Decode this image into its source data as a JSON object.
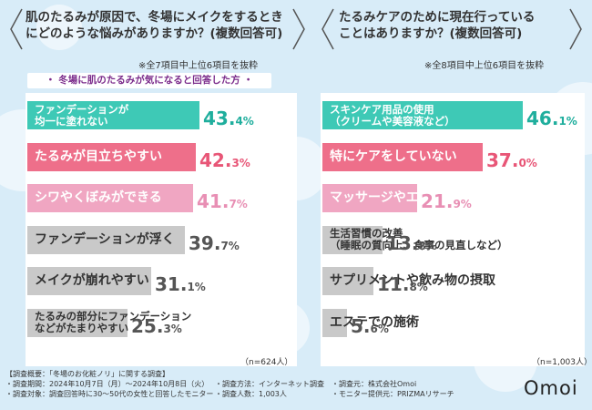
{
  "left": {
    "question": "肌のたるみが原因で、冬場にメイクをするとき\nにどのような悩みがありますか？(複数回答可)",
    "note": "※全7項目中上位6項目を抜粋",
    "subtitle": "・ 冬場に肌のたるみが気になると回答した方 ・",
    "n": "（n=624人）"
  },
  "right": {
    "question": "たるみケアのために現在行っている\nことはありますか？(複数回答可)",
    "note": "※全8項目中上位6項目を抜粋",
    "n": "（n=1,003人）"
  },
  "colors": {
    "teal": "#3ec9b6",
    "pink": "#ee6f8a",
    "lightpink": "#f0a6c2",
    "gray": "#c9c9c9",
    "teal_text": "#1fae9d",
    "pink_text": "#e85677",
    "lightpink_text": "#e88fb4",
    "gray_text": "#555555"
  },
  "chart_data": [
    {
      "type": "bar",
      "title": "肌のたるみが原因で、冬場にメイクをするときにどのような悩みがありますか？(複数回答可)",
      "subtitle": "冬場に肌のたるみが気になると回答した方",
      "categories": [
        "ファンデーションが\n均一に塗れない",
        "たるみが目立ちやすい",
        "シワやくぼみができる",
        "ファンデーションが浮く",
        "メイクが崩れやすい",
        "たるみの部分にファンデーション\nなどがたまりやすい"
      ],
      "values": [
        43.4,
        42.3,
        41.7,
        39.7,
        31.1,
        25.3
      ],
      "value_labels": [
        [
          "43.",
          "4",
          "%"
        ],
        [
          "42.",
          "3",
          "%"
        ],
        [
          "41.",
          "7",
          "%"
        ],
        [
          "39.",
          "7",
          "%"
        ],
        [
          "31.",
          "1",
          "%"
        ],
        [
          "25.",
          "3",
          "%"
        ]
      ],
      "bar_colors": [
        "teal",
        "pink",
        "lightpink",
        "gray",
        "gray",
        "gray"
      ],
      "xlim": [
        0,
        55
      ]
    },
    {
      "type": "bar",
      "title": "たるみケアのために現在行っていることはありますか？(複数回答可)",
      "categories": [
        "スキンケア用品の使用\n（クリームや美容液など）",
        "特にケアをしていない",
        "マッサージやエクササイズ",
        "生活習慣の改善\n（睡眠の質向上、食事の見直しなど）",
        "サプリメントや飲み物の摂取",
        "エステでの施術"
      ],
      "values": [
        46.1,
        37.0,
        21.9,
        13.8,
        11.8,
        5.6
      ],
      "value_labels": [
        [
          "46.",
          "1",
          "%"
        ],
        [
          "37.",
          "0",
          "%"
        ],
        [
          "21.",
          "9",
          "%"
        ],
        [
          "13.",
          "8",
          "%"
        ],
        [
          "11.",
          "8",
          "%"
        ],
        [
          "5.",
          "6",
          "%"
        ]
      ],
      "bar_colors": [
        "teal",
        "pink",
        "lightpink",
        "gray",
        "gray",
        "gray"
      ],
      "xlim": [
        0,
        55
      ]
    }
  ],
  "footer": {
    "col1": [
      "【調査概要：「冬場のお化粧ノリ」に関する調査】",
      "・調査期間：2024年10月7日（月）～2024年10月8日（火）",
      "・調査対象：調査回答時に30～50代の女性と回答したモニター"
    ],
    "col2": [
      "",
      "・調査方法：インターネット調査",
      "・調査人数：1,003人"
    ],
    "col3": [
      "",
      "・調査元：株式会社Omoi",
      "・モニター提供元：PRIZMAリサーチ"
    ],
    "logo": "Omoi"
  }
}
